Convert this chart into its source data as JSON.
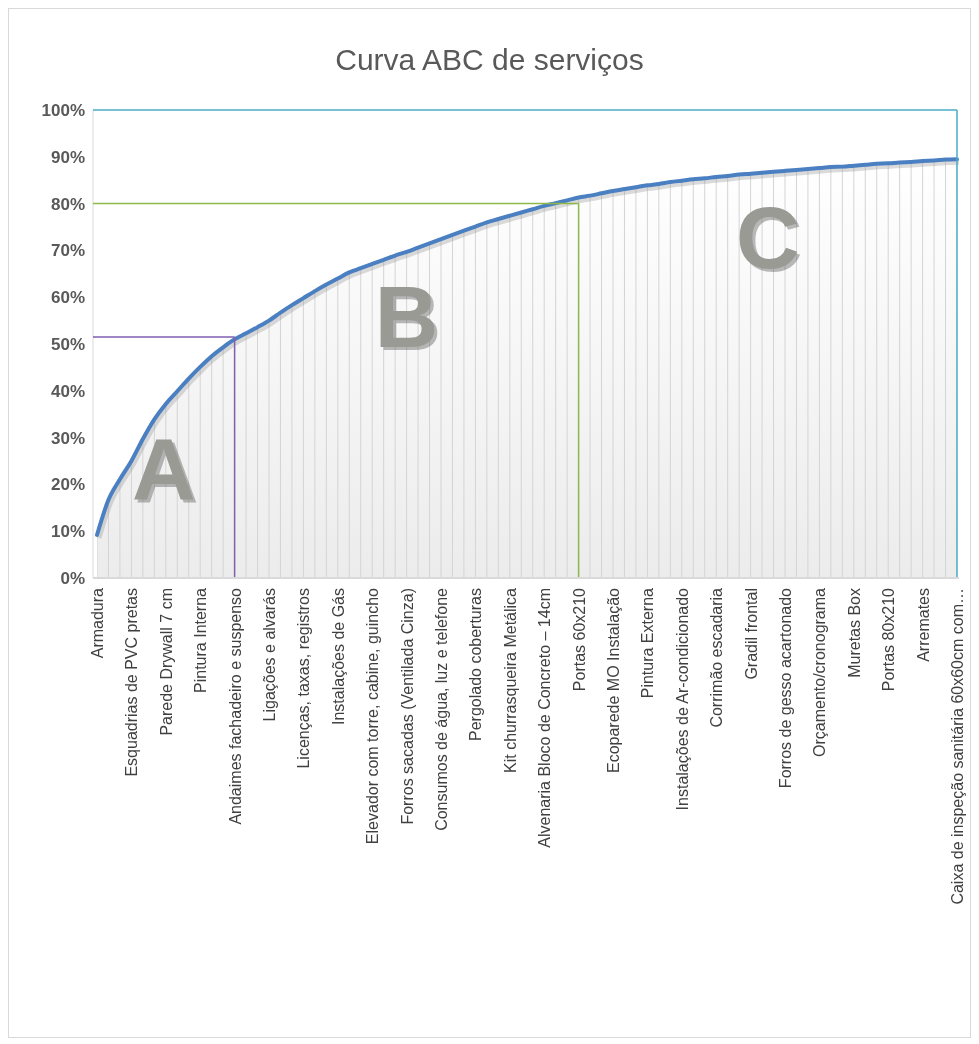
{
  "chart_data": {
    "type": "area",
    "title": "Curva ABC de serviços",
    "categories": [
      "Armadura",
      null,
      null,
      "Esquadrias de PVC pretas",
      null,
      null,
      "Parede Drywall 7 cm",
      null,
      null,
      "Pintura Interna",
      null,
      null,
      "Andaimes fachadeiro e suspenso",
      null,
      null,
      "Ligações e alvarás",
      null,
      null,
      "Licenças, taxas, registros",
      null,
      null,
      "Instalações de Gás",
      null,
      null,
      "Elevador com torre, cabine, guincho",
      null,
      null,
      "Forros sacadas (Ventilada Cinza)",
      null,
      null,
      "Consumos de água, luz e telefone",
      null,
      null,
      "Pergolado coberturas",
      null,
      null,
      "Kit churrasqueira Metálica",
      null,
      null,
      "Alvenaria Bloco de Concreto – 14cm",
      null,
      null,
      "Portas 60x210",
      null,
      null,
      "Ecoparede MO Instalação",
      null,
      null,
      "Pintura Externa",
      null,
      null,
      "Instalações de Ar-condicionado",
      null,
      null,
      "Corrimão escadaria",
      null,
      null,
      "Gradil frontal",
      null,
      null,
      "Forros de gesso acartonado",
      null,
      null,
      "Orçamento/cronograma",
      null,
      null,
      "Muretas Box",
      null,
      null,
      "Portas 80x210",
      null,
      null,
      "Arremates",
      null,
      null,
      "Caixa de inspeção sanitária 60x60cm com…"
    ],
    "series": [
      {
        "color": "#4a7fc1",
        "values": [
          9.2,
          16.7,
          21.1,
          25,
          29.7,
          33.9,
          37.2,
          39.9,
          42.6,
          45.1,
          47.4,
          49.3,
          51,
          52.3,
          53.6,
          55,
          56.7,
          58.3,
          59.8,
          61.3,
          62.7,
          64,
          65.3,
          66.2,
          67.1,
          68,
          68.9,
          69.7,
          70.6,
          71.5,
          72.4,
          73.3,
          74.2,
          75.1,
          76,
          76.7,
          77.4,
          78.1,
          78.8,
          79.5,
          80.1,
          80.7,
          81.3,
          81.7,
          82.2,
          82.7,
          83.1,
          83.5,
          83.9,
          84.2,
          84.6,
          84.9,
          85.2,
          85.4,
          85.7,
          85.9,
          86.2,
          86.4,
          86.6,
          86.8,
          87,
          87.2,
          87.4,
          87.6,
          87.8,
          87.9,
          88.1,
          88.3,
          88.5,
          88.6,
          88.8,
          88.9,
          89.1,
          89.2,
          89.4,
          89.5
        ]
      }
    ],
    "ylim": [
      0,
      100
    ],
    "yticks": [
      {
        "value": 0,
        "label": "0%"
      },
      {
        "value": 10,
        "label": "10%"
      },
      {
        "value": 20,
        "label": "20%"
      },
      {
        "value": 30,
        "label": "30%"
      },
      {
        "value": 40,
        "label": "40%"
      },
      {
        "value": 50,
        "label": "50%"
      },
      {
        "value": 60,
        "label": "60%"
      },
      {
        "value": 70,
        "label": "70%"
      },
      {
        "value": 80,
        "label": "80%"
      },
      {
        "value": 90,
        "label": "90%"
      },
      {
        "value": 100,
        "label": "100%"
      }
    ],
    "grid": "x",
    "ref_lines": [
      {
        "axis": "y",
        "value": 51.5,
        "color": "#7e5fb0"
      },
      {
        "axis": "x",
        "value": "Andaimes fachadeiro e suspenso",
        "color": "#7e5fb0"
      },
      {
        "axis": "y",
        "value": 80,
        "color": "#8fb84a"
      },
      {
        "axis": "x",
        "value": "Portas 60x210",
        "color": "#8fb84a"
      },
      {
        "axis": "y",
        "value": 100,
        "color": "#4bacc6"
      },
      {
        "axis": "x",
        "value": "Caixa de inspeção sanitária 60x60cm com…",
        "color": "#4bacc6"
      }
    ],
    "annotations": [
      "A",
      "B",
      "C"
    ]
  }
}
